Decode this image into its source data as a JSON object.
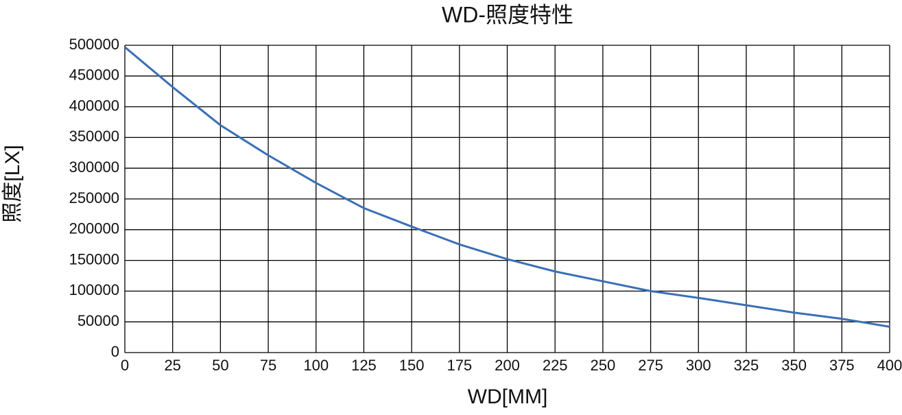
{
  "chart_data": {
    "type": "line",
    "title": "WD-照度特性",
    "x_label": "WD[MM]",
    "y_label": "照度[LX]",
    "x": [
      0,
      25,
      50,
      75,
      100,
      125,
      150,
      175,
      200,
      225,
      250,
      275,
      300,
      325,
      350,
      375,
      400
    ],
    "series": [
      {
        "name": "照度",
        "color": "#3a6fb5",
        "values": [
          497000,
          432000,
          370000,
          321000,
          276000,
          235000,
          205000,
          176000,
          152000,
          132000,
          116000,
          100000,
          89000,
          77000,
          65000,
          55000,
          42000
        ]
      }
    ],
    "xlim": [
      0,
      400
    ],
    "ylim": [
      0,
      500000
    ],
    "xticks": [
      0,
      25,
      50,
      75,
      100,
      125,
      150,
      175,
      200,
      225,
      250,
      275,
      300,
      325,
      350,
      375,
      400
    ],
    "yticks": [
      0,
      50000,
      100000,
      150000,
      200000,
      250000,
      300000,
      350000,
      400000,
      450000,
      500000
    ],
    "grid": true
  }
}
